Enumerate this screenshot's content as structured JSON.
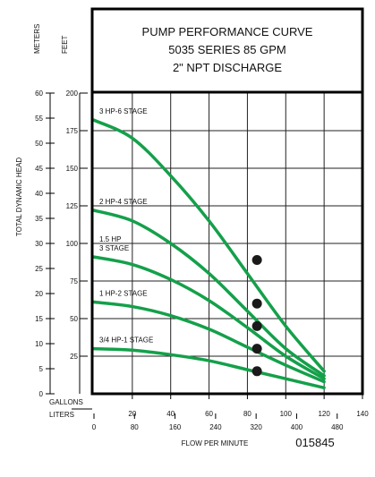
{
  "title_box": {
    "line1": "PUMP PERFORMANCE CURVE",
    "line2": "5035 SERIES 85 GPM",
    "line3": "2\" NPT DISCHARGE"
  },
  "labels": {
    "meters": "METERS",
    "feet": "FEET",
    "y_axis": "TOTAL DYNAMIC HEAD",
    "gallons": "GALLONS",
    "liters": "LITERS",
    "x_axis": "FLOW PER MINUTE",
    "code": "015845"
  },
  "colors": {
    "curve": "#14a04a",
    "point": "#1a1a1a",
    "frame": "#000000"
  },
  "chart_data": {
    "type": "line",
    "title": "PUMP PERFORMANCE CURVE",
    "xlabel": "FLOW PER MINUTE",
    "ylabel": "TOTAL DYNAMIC HEAD",
    "x_gallons_ticks": [
      "20",
      "40",
      "60",
      "80",
      "100",
      "120",
      "140"
    ],
    "x_gallons_lim": [
      0,
      140
    ],
    "x_liters_ticks": [
      "0",
      "80",
      "160",
      "240",
      "320",
      "400",
      "480"
    ],
    "y_feet_ticks": [
      "25",
      "50",
      "75",
      "100",
      "125",
      "150",
      "175",
      "200"
    ],
    "y_feet_lim": [
      0,
      200
    ],
    "y_meters_ticks": [
      "0",
      "5",
      "10",
      "15",
      "20",
      "25",
      "30",
      "35",
      "40",
      "45",
      "50",
      "55",
      "60"
    ],
    "y_meters_lim": [
      0,
      60
    ],
    "grid": true,
    "series": [
      {
        "name": "3 HP-6 STAGE",
        "x": [
          0,
          20,
          40,
          60,
          80,
          100,
          120
        ],
        "y": [
          182,
          170,
          145,
          115,
          80,
          45,
          15
        ]
      },
      {
        "name": "2 HP-4 STAGE",
        "x": [
          0,
          20,
          40,
          60,
          80,
          100,
          120
        ],
        "y": [
          122,
          115,
          100,
          80,
          55,
          30,
          12
        ]
      },
      {
        "name": "1.5 HP 3 STAGE",
        "x": [
          0,
          20,
          40,
          60,
          80,
          100,
          120
        ],
        "y": [
          91,
          86,
          76,
          62,
          44,
          25,
          10
        ]
      },
      {
        "name": "1 HP-2 STAGE",
        "x": [
          0,
          20,
          40,
          60,
          80,
          100,
          120
        ],
        "y": [
          61,
          58,
          52,
          43,
          31,
          19,
          8
        ]
      },
      {
        "name": "3/4 HP-1 STAGE",
        "x": [
          0,
          20,
          40,
          60,
          80,
          100,
          120
        ],
        "y": [
          30,
          29,
          26,
          22,
          16,
          10,
          4
        ]
      }
    ],
    "operating_points": [
      {
        "series": "3 HP-6 STAGE",
        "x": 85,
        "y": 89
      },
      {
        "series": "2 HP-4 STAGE",
        "x": 85,
        "y": 60
      },
      {
        "series": "1.5 HP 3 STAGE",
        "x": 85,
        "y": 45
      },
      {
        "series": "1 HP-2 STAGE",
        "x": 85,
        "y": 30
      },
      {
        "series": "3/4 HP-1 STAGE",
        "x": 85,
        "y": 15
      }
    ]
  }
}
